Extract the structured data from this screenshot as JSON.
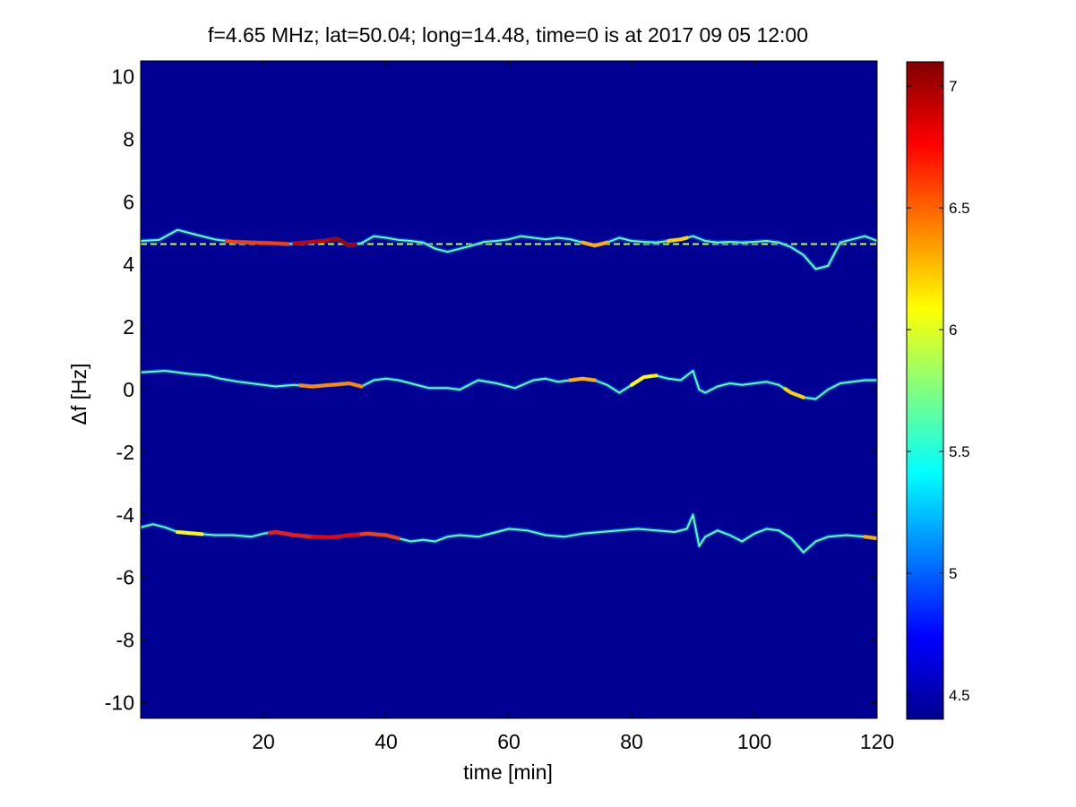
{
  "chart_data": {
    "type": "heatmap",
    "title": "f=4.65 MHz;  lat=50.04; long=14.48, time=0 is at 2017 09 05 12:00",
    "xlabel": "time [min]",
    "ylabel": "Δf [Hz]",
    "xlim": [
      0,
      120
    ],
    "ylim": [
      -10.5,
      10.5
    ],
    "x_ticks": [
      20,
      40,
      60,
      80,
      100,
      120
    ],
    "x_tick_labels": [
      "20",
      "40",
      "60",
      "80",
      "100",
      "120"
    ],
    "y_ticks": [
      10,
      8,
      6,
      4,
      2,
      0,
      -2,
      -4,
      -6,
      -8,
      -10
    ],
    "y_tick_labels": [
      "10",
      "8",
      "6",
      "4",
      "2",
      "0",
      "-2",
      "-4",
      "-6",
      "-8",
      "-10"
    ],
    "colorbar": {
      "colormap": "jet",
      "range": [
        4.4,
        7.1
      ],
      "ticks": [
        7,
        6.5,
        6,
        5.5,
        5,
        4.5
      ],
      "tick_labels": [
        "7",
        "6.5",
        "6",
        "5.5",
        "5",
        "4.5"
      ]
    },
    "background_value": 4.45,
    "grid": false,
    "reference_line": {
      "y": 4.65,
      "style": "dashed"
    },
    "traces": [
      {
        "points": [
          [
            0,
            4.75
          ],
          [
            3,
            4.78
          ],
          [
            6,
            5.1
          ],
          [
            9,
            4.95
          ],
          [
            12,
            4.8
          ],
          [
            15,
            4.72
          ],
          [
            18,
            4.7
          ],
          [
            21,
            4.68
          ],
          [
            24,
            4.65
          ],
          [
            27,
            4.7
          ],
          [
            30,
            4.75
          ],
          [
            32,
            4.82
          ],
          [
            34,
            4.6
          ],
          [
            36,
            4.68
          ],
          [
            38,
            4.9
          ],
          [
            40,
            4.85
          ],
          [
            42,
            4.78
          ],
          [
            44,
            4.75
          ],
          [
            46,
            4.7
          ],
          [
            48,
            4.5
          ],
          [
            50,
            4.4
          ],
          [
            52,
            4.5
          ],
          [
            54,
            4.6
          ],
          [
            56,
            4.72
          ],
          [
            58,
            4.75
          ],
          [
            60,
            4.8
          ],
          [
            62,
            4.9
          ],
          [
            64,
            4.85
          ],
          [
            66,
            4.8
          ],
          [
            68,
            4.85
          ],
          [
            70,
            4.8
          ],
          [
            72,
            4.7
          ],
          [
            74,
            4.6
          ],
          [
            76,
            4.7
          ],
          [
            78,
            4.85
          ],
          [
            80,
            4.75
          ],
          [
            82,
            4.72
          ],
          [
            84,
            4.7
          ],
          [
            86,
            4.75
          ],
          [
            88,
            4.8
          ],
          [
            90,
            4.9
          ],
          [
            92,
            4.75
          ],
          [
            94,
            4.7
          ],
          [
            96,
            4.72
          ],
          [
            98,
            4.7
          ],
          [
            100,
            4.72
          ],
          [
            102,
            4.75
          ],
          [
            104,
            4.7
          ],
          [
            106,
            4.55
          ],
          [
            108,
            4.3
          ],
          [
            110,
            3.85
          ],
          [
            112,
            3.95
          ],
          [
            114,
            4.7
          ],
          [
            116,
            4.8
          ],
          [
            118,
            4.9
          ],
          [
            120,
            4.75
          ]
        ],
        "hot": [
          [
            14,
            24,
            6.6
          ],
          [
            25,
            31,
            6.9
          ],
          [
            31,
            35,
            7.0
          ],
          [
            72,
            76,
            6.3
          ],
          [
            86,
            89,
            6.2
          ]
        ]
      },
      {
        "points": [
          [
            0,
            0.55
          ],
          [
            4,
            0.6
          ],
          [
            8,
            0.5
          ],
          [
            11,
            0.45
          ],
          [
            13,
            0.35
          ],
          [
            16,
            0.25
          ],
          [
            18,
            0.2
          ],
          [
            20,
            0.15
          ],
          [
            22,
            0.1
          ],
          [
            25,
            0.15
          ],
          [
            28,
            0.1
          ],
          [
            31,
            0.15
          ],
          [
            34,
            0.2
          ],
          [
            36,
            0.1
          ],
          [
            38,
            0.3
          ],
          [
            40,
            0.35
          ],
          [
            42,
            0.3
          ],
          [
            44,
            0.2
          ],
          [
            47,
            0.05
          ],
          [
            50,
            0.05
          ],
          [
            52,
            0.0
          ],
          [
            55,
            0.3
          ],
          [
            58,
            0.2
          ],
          [
            61,
            0.05
          ],
          [
            64,
            0.3
          ],
          [
            66,
            0.35
          ],
          [
            68,
            0.25
          ],
          [
            70,
            0.3
          ],
          [
            72,
            0.35
          ],
          [
            74,
            0.3
          ],
          [
            76,
            0.15
          ],
          [
            78,
            -0.1
          ],
          [
            80,
            0.15
          ],
          [
            82,
            0.4
          ],
          [
            84,
            0.45
          ],
          [
            86,
            0.35
          ],
          [
            88,
            0.3
          ],
          [
            89,
            0.45
          ],
          [
            90,
            0.6
          ],
          [
            91,
            0.0
          ],
          [
            92,
            -0.1
          ],
          [
            94,
            0.1
          ],
          [
            96,
            0.2
          ],
          [
            98,
            0.15
          ],
          [
            100,
            0.2
          ],
          [
            102,
            0.25
          ],
          [
            104,
            0.15
          ],
          [
            106,
            -0.1
          ],
          [
            108,
            -0.25
          ],
          [
            110,
            -0.3
          ],
          [
            112,
            0.0
          ],
          [
            114,
            0.2
          ],
          [
            116,
            0.25
          ],
          [
            118,
            0.3
          ],
          [
            120,
            0.3
          ]
        ],
        "hot": [
          [
            26,
            36,
            6.4
          ],
          [
            70,
            74,
            6.3
          ],
          [
            80,
            84,
            6.1
          ],
          [
            105,
            108,
            6.2
          ]
        ]
      },
      {
        "points": [
          [
            0,
            -4.4
          ],
          [
            2,
            -4.3
          ],
          [
            4,
            -4.4
          ],
          [
            6,
            -4.55
          ],
          [
            9,
            -4.6
          ],
          [
            12,
            -4.65
          ],
          [
            15,
            -4.65
          ],
          [
            18,
            -4.7
          ],
          [
            20,
            -4.6
          ],
          [
            22,
            -4.55
          ],
          [
            25,
            -4.65
          ],
          [
            28,
            -4.7
          ],
          [
            31,
            -4.72
          ],
          [
            34,
            -4.65
          ],
          [
            37,
            -4.6
          ],
          [
            40,
            -4.65
          ],
          [
            42,
            -4.75
          ],
          [
            44,
            -4.85
          ],
          [
            46,
            -4.8
          ],
          [
            48,
            -4.85
          ],
          [
            50,
            -4.7
          ],
          [
            52,
            -4.65
          ],
          [
            55,
            -4.7
          ],
          [
            58,
            -4.55
          ],
          [
            60,
            -4.45
          ],
          [
            63,
            -4.5
          ],
          [
            66,
            -4.65
          ],
          [
            69,
            -4.7
          ],
          [
            72,
            -4.6
          ],
          [
            75,
            -4.55
          ],
          [
            78,
            -4.5
          ],
          [
            81,
            -4.45
          ],
          [
            84,
            -4.5
          ],
          [
            87,
            -4.55
          ],
          [
            89,
            -4.45
          ],
          [
            90,
            -4.0
          ],
          [
            91,
            -5.0
          ],
          [
            92,
            -4.7
          ],
          [
            94,
            -4.5
          ],
          [
            96,
            -4.65
          ],
          [
            98,
            -4.85
          ],
          [
            100,
            -4.6
          ],
          [
            102,
            -4.45
          ],
          [
            104,
            -4.5
          ],
          [
            106,
            -4.75
          ],
          [
            108,
            -5.2
          ],
          [
            110,
            -4.85
          ],
          [
            112,
            -4.7
          ],
          [
            115,
            -4.65
          ],
          [
            118,
            -4.7
          ],
          [
            120,
            -4.75
          ]
        ],
        "hot": [
          [
            6,
            10,
            6.1
          ],
          [
            21,
            28,
            6.7
          ],
          [
            28,
            36,
            6.8
          ],
          [
            36,
            42,
            6.6
          ],
          [
            118,
            120,
            6.3
          ]
        ]
      }
    ]
  }
}
